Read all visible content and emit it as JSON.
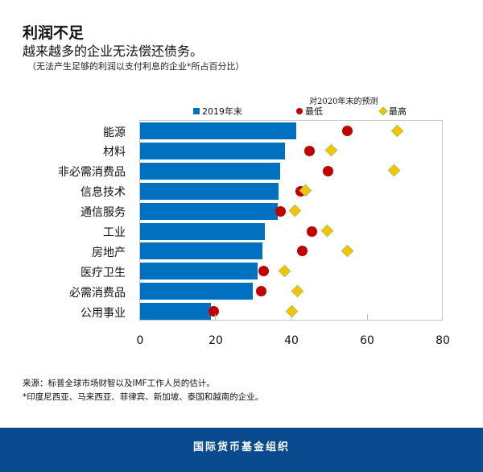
{
  "title": "利润不足",
  "subtitle": "越来越多的企业无法偿还债务。",
  "note": "（无法产生足够的利润以支付利息的企业*所占百分比）",
  "legend": {
    "group_label": "对2020年末的预测",
    "bar_label": "2019年末",
    "low_label": "最低",
    "high_label": "最高"
  },
  "source": "来源：标普全球市场财智以及IMF工作人员的估计。",
  "footnote": "*印度尼西亚、马来西亚、菲律宾、新加坡、泰国和越南的企业。",
  "footer": "国际货币基金组织",
  "colors": {
    "bar": "#0070c0",
    "low": "#c00000",
    "high": "#ffc000",
    "high_border": "#92d050",
    "footer": "#0a4a8f"
  },
  "chart_data": {
    "type": "bar",
    "orientation": "horizontal",
    "title": "利润不足",
    "subtitle": "越来越多的企业无法偿还债务。",
    "xlabel": "",
    "ylabel": "",
    "xlim": [
      0,
      80
    ],
    "xticks": [
      0,
      20,
      40,
      60,
      80
    ],
    "categories": [
      "能源",
      "材料",
      "非必需消费品",
      "信息技术",
      "通信服务",
      "工业",
      "房地产",
      "医疗卫生",
      "必需消费品",
      "公用事业"
    ],
    "series": [
      {
        "name": "2019年末",
        "type": "bar",
        "values": [
          41.2,
          38.2,
          37.1,
          36.5,
          36.3,
          32.9,
          32.3,
          31.0,
          29.7,
          18.7
        ]
      },
      {
        "name": "最低",
        "type": "scatter",
        "marker": "circle",
        "values": [
          54.7,
          44.8,
          49.7,
          42.4,
          37.1,
          45.4,
          42.9,
          32.7,
          32.1,
          19.5
        ]
      },
      {
        "name": "最高",
        "type": "scatter",
        "marker": "diamond",
        "values": [
          68.1,
          50.7,
          67.3,
          43.9,
          41.0,
          49.5,
          54.8,
          38.4,
          41.6,
          40.3
        ]
      }
    ],
    "legend_group": "对2020年末的预测",
    "legend_position": "top"
  }
}
